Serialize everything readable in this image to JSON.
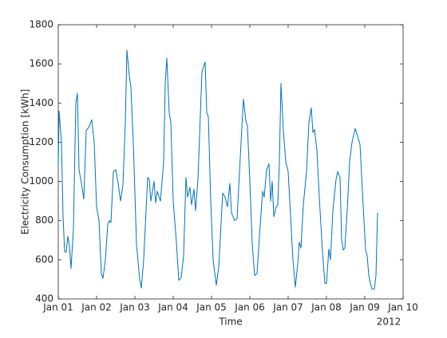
{
  "chart_data": {
    "type": "line",
    "ylabel": "Electricity Consumption [kWh]",
    "xlabel": "Time",
    "xlabel_secondary": "2012",
    "xlim": [
      0,
      216
    ],
    "xticks": [
      {
        "value": 0,
        "label": "Jan 01"
      },
      {
        "value": 24,
        "label": "Jan 02"
      },
      {
        "value": 48,
        "label": "Jan 03"
      },
      {
        "value": 72,
        "label": "Jan 04"
      },
      {
        "value": 96,
        "label": "Jan 05"
      },
      {
        "value": 120,
        "label": "Jan 06"
      },
      {
        "value": 144,
        "label": "Jan 07"
      },
      {
        "value": 168,
        "label": "Jan 08"
      },
      {
        "value": 192,
        "label": "Jan 09"
      },
      {
        "value": 216,
        "label": "Jan 10"
      }
    ],
    "ylim": [
      400,
      1800
    ],
    "yticks": [
      400,
      600,
      800,
      1000,
      1200,
      1400,
      1600,
      1800
    ],
    "x": [
      0,
      0.5,
      2,
      3,
      4,
      5,
      6,
      7,
      8,
      9.5,
      11,
      12,
      13,
      14.5,
      16,
      17.5,
      19,
      21,
      22.5,
      24,
      25.5,
      27,
      28,
      29.5,
      31,
      32,
      33,
      34.5,
      36,
      37.5,
      39,
      40.5,
      42,
      43,
      44.5,
      45.5,
      47,
      49,
      51,
      52,
      53.5,
      56,
      57,
      58,
      60,
      61,
      62,
      64,
      66,
      67,
      68,
      69.5,
      70.5,
      72,
      74,
      75.5,
      77,
      78.5,
      80,
      81,
      82.5,
      83.5,
      85,
      86,
      87.5,
      90,
      92,
      93,
      94,
      95.5,
      97,
      99,
      100.5,
      103,
      104.5,
      106,
      107.5,
      108.5,
      110.5,
      112,
      114.5,
      116,
      117.5,
      118.5,
      120,
      121.5,
      123,
      124.5,
      126,
      128,
      129,
      130.5,
      132,
      133,
      134,
      135,
      136.5,
      137.5,
      138.5,
      139.5,
      141,
      142.5,
      144,
      145,
      147,
      148.5,
      150,
      151,
      152,
      153.5,
      155.5,
      157,
      158.5,
      159.5,
      160.5,
      162,
      163.5,
      165.5,
      167,
      168,
      169.5,
      170.5,
      172,
      174,
      175,
      176.5,
      177.5,
      178.5,
      179.5,
      181,
      182.5,
      184,
      186,
      187.5,
      189,
      190.5,
      192.5,
      193.5,
      194.5,
      195.5,
      196.5,
      198,
      199,
      200
    ],
    "series": [
      {
        "name": "Consumption",
        "color": "#0072bd",
        "values": [
          1080,
          1360,
          1200,
          820,
          640,
          640,
          720,
          670,
          555,
          760,
          1400,
          1450,
          1060,
          990,
          910,
          1260,
          1275,
          1315,
          1200,
          870,
          800,
          530,
          505,
          600,
          780,
          800,
          790,
          1050,
          1060,
          990,
          900,
          980,
          1300,
          1670,
          1540,
          1480,
          1200,
          680,
          500,
          455,
          600,
          1020,
          1010,
          900,
          1000,
          890,
          950,
          900,
          1100,
          1500,
          1630,
          1350,
          1300,
          900,
          690,
          495,
          510,
          620,
          1020,
          920,
          970,
          880,
          960,
          850,
          1010,
          1560,
          1610,
          1350,
          1330,
          900,
          600,
          470,
          560,
          940,
          920,
          870,
          990,
          840,
          800,
          810,
          1200,
          1420,
          1310,
          1280,
          1000,
          680,
          520,
          530,
          720,
          950,
          920,
          1060,
          1090,
          900,
          1000,
          820,
          870,
          880,
          1100,
          1500,
          1260,
          1100,
          1050,
          900,
          600,
          460,
          580,
          690,
          660,
          880,
          1050,
          1300,
          1375,
          1250,
          1265,
          1160,
          920,
          640,
          480,
          480,
          655,
          600,
          850,
          1010,
          1050,
          1020,
          700,
          650,
          660,
          850,
          1100,
          1200,
          1270,
          1230,
          1190,
          950,
          650,
          620,
          520,
          480,
          450,
          450,
          520,
          840
        ]
      }
    ]
  }
}
